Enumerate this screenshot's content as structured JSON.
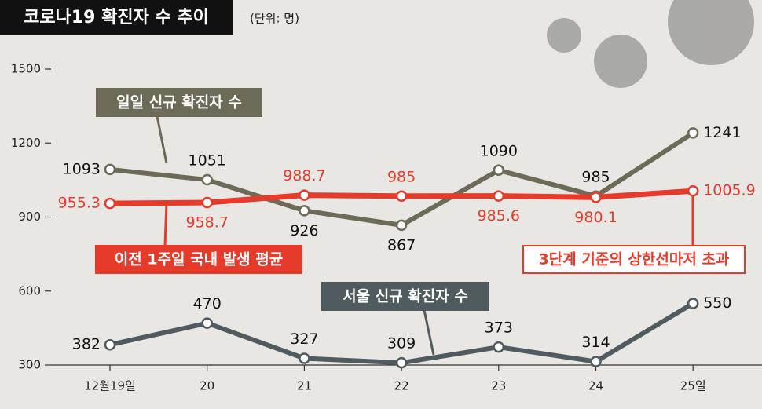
{
  "chart_data": {
    "type": "line",
    "title": "코로나19 확진자 수 추이",
    "subtitle": "(단위: 명)",
    "categories": [
      "12월19일",
      "20",
      "21",
      "22",
      "23",
      "24",
      "25일"
    ],
    "series": [
      {
        "name": "일일 신규 확진자 수",
        "color": "#6d6a57",
        "values": [
          1093,
          1051,
          926,
          867,
          1090,
          985,
          1241
        ]
      },
      {
        "name": "이전 1주일 국내 발생 평균",
        "color": "#e63a2b",
        "values": [
          955.3,
          958.7,
          988.7,
          985,
          985.6,
          980.1,
          1005.9
        ]
      },
      {
        "name": "서울 신규 확진자 수",
        "color": "#505b5f",
        "values": [
          382,
          470,
          327,
          309,
          373,
          314,
          550
        ]
      }
    ],
    "annotation": "3단계 기준의 상한선마저 초과",
    "ylim": [
      300,
      1500
    ],
    "yticks": [
      300,
      600,
      900,
      1200,
      1500
    ],
    "grid": false
  }
}
